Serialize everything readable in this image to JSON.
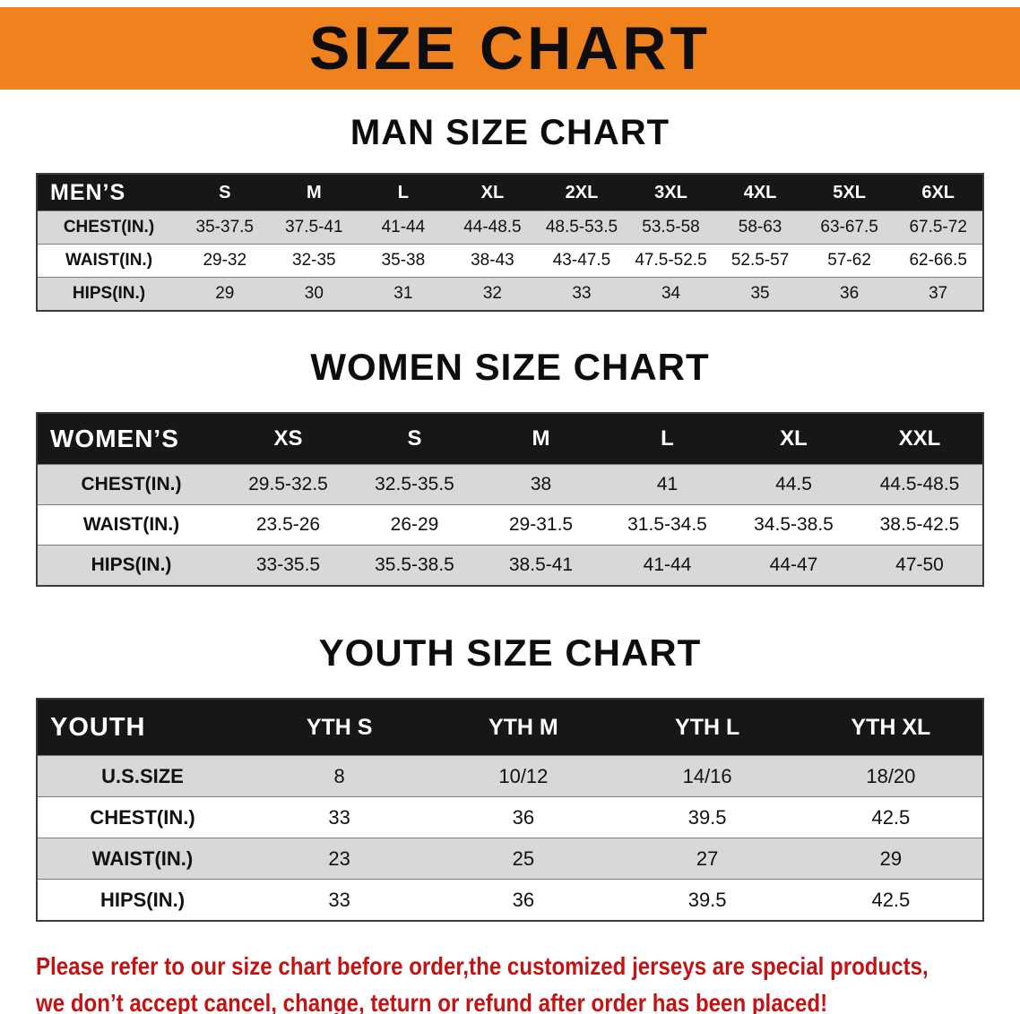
{
  "banner": {
    "title": "SIZE CHART"
  },
  "men": {
    "heading": "MAN SIZE CHART",
    "header_label": "MEN’S",
    "sizes": [
      "S",
      "M",
      "L",
      "XL",
      "2XL",
      "3XL",
      "4XL",
      "5XL",
      "6XL"
    ],
    "rows": [
      {
        "label": "CHEST(IN.)",
        "values": [
          "35-37.5",
          "37.5-41",
          "41-44",
          "44-48.5",
          "48.5-53.5",
          "53.5-58",
          "58-63",
          "63-67.5",
          "67.5-72"
        ]
      },
      {
        "label": "WAIST(IN.)",
        "values": [
          "29-32",
          "32-35",
          "35-38",
          "38-43",
          "43-47.5",
          "47.5-52.5",
          "52.5-57",
          "57-62",
          "62-66.5"
        ]
      },
      {
        "label": "HIPS(IN.)",
        "values": [
          "29",
          "30",
          "31",
          "32",
          "33",
          "34",
          "35",
          "36",
          "37"
        ]
      }
    ]
  },
  "women": {
    "heading": "WOMEN SIZE CHART",
    "header_label": "WOMEN’S",
    "sizes": [
      "XS",
      "S",
      "M",
      "L",
      "XL",
      "XXL"
    ],
    "rows": [
      {
        "label": "CHEST(IN.)",
        "values": [
          "29.5-32.5",
          "32.5-35.5",
          "38",
          "41",
          "44.5",
          "44.5-48.5"
        ]
      },
      {
        "label": "WAIST(IN.)",
        "values": [
          "23.5-26",
          "26-29",
          "29-31.5",
          "31.5-34.5",
          "34.5-38.5",
          "38.5-42.5"
        ]
      },
      {
        "label": "HIPS(IN.)",
        "values": [
          "33-35.5",
          "35.5-38.5",
          "38.5-41",
          "41-44",
          "44-47",
          "47-50"
        ]
      }
    ]
  },
  "youth": {
    "heading": "YOUTH SIZE CHART",
    "header_label": "YOUTH",
    "sizes": [
      "YTH S",
      "YTH M",
      "YTH L",
      "YTH XL"
    ],
    "rows": [
      {
        "label": "U.S.SIZE",
        "values": [
          "8",
          "10/12",
          "14/16",
          "18/20"
        ]
      },
      {
        "label": "CHEST(IN.)",
        "values": [
          "33",
          "36",
          "39.5",
          "42.5"
        ]
      },
      {
        "label": "WAIST(IN.)",
        "values": [
          "23",
          "25",
          "27",
          "29"
        ]
      },
      {
        "label": "HIPS(IN.)",
        "values": [
          "33",
          "36",
          "39.5",
          "42.5"
        ]
      }
    ]
  },
  "footer": {
    "line1": "Please refer to our size chart before order,the customized jerseys are special products,",
    "line2": "we don’t accept cancel, change, teturn or refund after order has been placed!"
  },
  "colors": {
    "banner_bg": "#ef821d",
    "header_bg": "#171717",
    "row_alt_bg": "#d8d8d8",
    "table_border": "#3c3c3c",
    "footer_text": "#c31313"
  }
}
